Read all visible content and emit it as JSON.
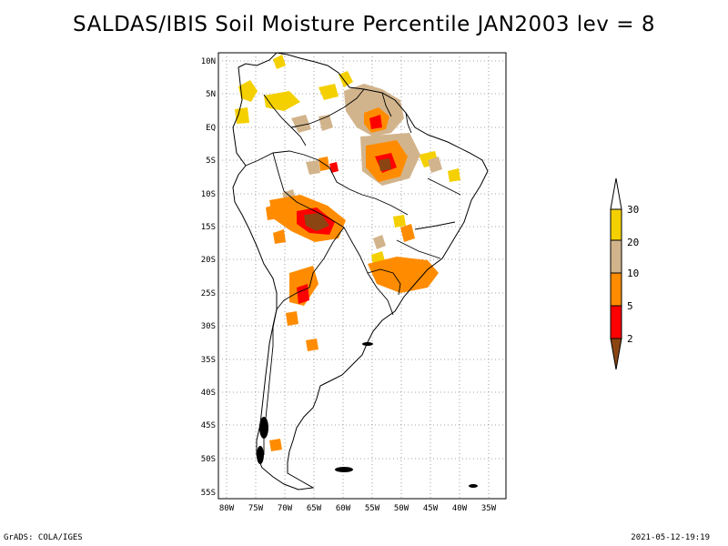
{
  "title": "SALDAS/IBIS Soil Moisture Percentile JAN2003 lev = 8",
  "footer": {
    "left": "GrADS: COLA/IGES",
    "right": "2021-05-12-19:19"
  },
  "map": {
    "lat_labels": [
      "10N",
      "5N",
      "EQ",
      "5S",
      "10S",
      "15S",
      "20S",
      "25S",
      "30S",
      "35S",
      "40S",
      "45S",
      "50S",
      "55S"
    ],
    "lon_labels": [
      "80W",
      "75W",
      "70W",
      "65W",
      "60W",
      "55W",
      "50W",
      "45W",
      "40W",
      "35W"
    ],
    "grid": "dotted",
    "lat_range": [
      "11N",
      "56S"
    ],
    "lon_range": [
      "81W",
      "32W"
    ]
  },
  "legend": {
    "labels": [
      "30",
      "20",
      "10",
      "5",
      "2"
    ],
    "colors": {
      "above_30": "#ffffff",
      "20_30": "#f5d000",
      "10_20": "#d2b48c",
      "5_10": "#ff8c00",
      "2_5": "#ff0000",
      "below_2": "#8b4513"
    }
  }
}
